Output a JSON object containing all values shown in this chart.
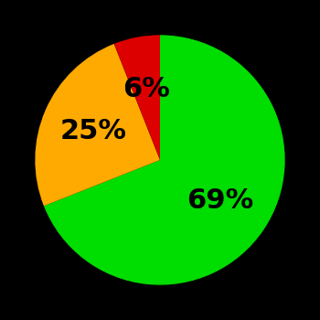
{
  "slices": [
    69,
    25,
    6
  ],
  "labels": [
    "69%",
    "25%",
    "6%"
  ],
  "colors": [
    "#00dd00",
    "#ffaa00",
    "#dd0000"
  ],
  "background_color": "#000000",
  "startangle": 90,
  "counterclock": false,
  "figsize": [
    3.5,
    3.5
  ],
  "dpi": 100,
  "text_fontsize": 22,
  "text_fontweight": "bold",
  "label_r": 0.58
}
